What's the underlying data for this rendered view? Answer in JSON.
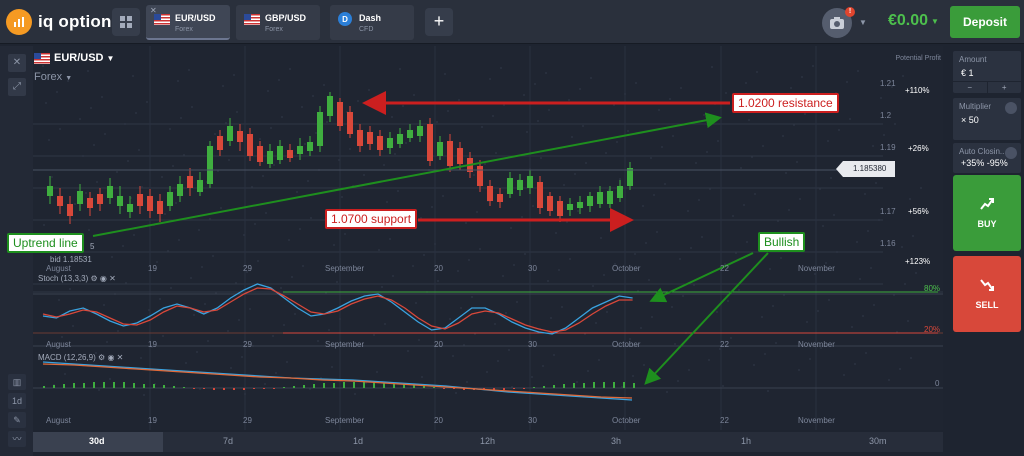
{
  "app": {
    "logo_text": "iq option"
  },
  "tabs": [
    {
      "name": "EUR/USD",
      "sub": "Forex"
    },
    {
      "name": "GBP/USD",
      "sub": "Forex"
    },
    {
      "name": "Dash",
      "sub": "CFD"
    }
  ],
  "camera_badge": "!",
  "balance": "€0.00",
  "deposit_label": "Deposit",
  "chart": {
    "pair": "EUR/USD",
    "category": "Forex",
    "potential_label": "Potential Profit",
    "price_tag": "1.185380",
    "bid_label": "bid 1.18531",
    "price_ticks": [
      "1.21",
      "1.2",
      "1.19",
      "1.18",
      "1.17",
      "1.16"
    ],
    "profit_ticks": [
      "+110%",
      "+26%",
      "+56%",
      "+123%"
    ],
    "x_labels": [
      "August",
      "19",
      "29",
      "September",
      "20",
      "30",
      "October",
      "22",
      "November"
    ],
    "stoch_title": "Stoch (13,3,3)",
    "stoch_levels": [
      "80%",
      "20%"
    ],
    "macd_title": "MACD (12,26,9)",
    "macd_zero": "0",
    "partial_label": "5"
  },
  "annotations": {
    "resistance": "1.0200 resistance",
    "support": "1.0700 support",
    "uptrend": "Uptrend line",
    "bullish": "Bullish"
  },
  "timeframes": [
    "30d",
    "7d",
    "1d",
    "12h",
    "3h",
    "1h",
    "30m"
  ],
  "left_tools_bottom": [
    "1d"
  ],
  "right_panel": {
    "amount_label": "Amount",
    "amount_value": "€ 1",
    "multiplier_label": "Multiplier",
    "multiplier_value": "× 50",
    "autoclose_label": "Auto Closin...",
    "autoclose_value": "+35% -95%",
    "buy_label": "BUY",
    "sell_label": "SELL"
  },
  "colors": {
    "up": "#3fae3f",
    "down": "#d9483a",
    "accent_green": "#3a9c3a",
    "accent_red": "#d8483a",
    "callout_red": "#cc1f1f",
    "callout_green": "#1e8f1e"
  }
}
